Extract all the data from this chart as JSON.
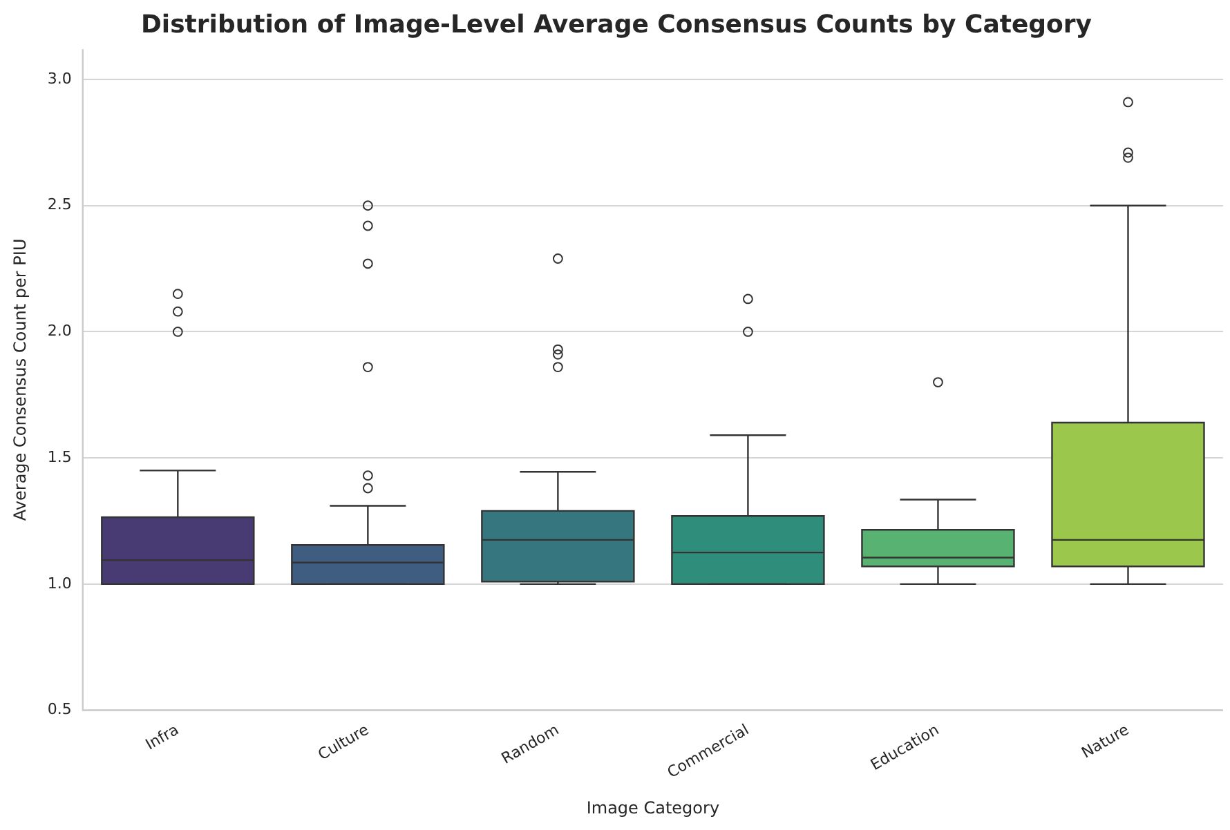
{
  "chart_data": {
    "type": "box",
    "title": "Distribution of Image-Level Average Consensus Counts by Category",
    "xlabel": "Image Category",
    "ylabel": "Average Consensus Count per PIU",
    "categories": [
      "Infra",
      "Culture",
      "Random",
      "Commercial",
      "Education",
      "Nature"
    ],
    "colors": [
      "#483b73",
      "#3f5c81",
      "#35767f",
      "#2e8e7b",
      "#58b372",
      "#9ac74c"
    ],
    "boxes": [
      {
        "low": 1.0,
        "q1": 1.0,
        "median": 1.095,
        "q3": 1.265,
        "high": 1.45,
        "outliers": [
          2.0,
          2.08,
          2.15
        ]
      },
      {
        "low": 1.0,
        "q1": 1.0,
        "median": 1.085,
        "q3": 1.155,
        "high": 1.31,
        "outliers": [
          1.38,
          1.43,
          1.86,
          2.27,
          2.42,
          2.5
        ]
      },
      {
        "low": 1.0,
        "q1": 1.01,
        "median": 1.175,
        "q3": 1.29,
        "high": 1.445,
        "outliers": [
          1.86,
          1.91,
          1.93,
          2.29
        ]
      },
      {
        "low": 1.0,
        "q1": 1.0,
        "median": 1.125,
        "q3": 1.27,
        "high": 1.59,
        "outliers": [
          2.0,
          2.13
        ]
      },
      {
        "low": 1.0,
        "q1": 1.07,
        "median": 1.105,
        "q3": 1.215,
        "high": 1.335,
        "outliers": [
          1.8
        ]
      },
      {
        "low": 1.0,
        "q1": 1.07,
        "median": 1.175,
        "q3": 1.64,
        "high": 2.5,
        "outliers": [
          2.69,
          2.71,
          2.91
        ]
      }
    ],
    "ylim": [
      0.5,
      3.12
    ],
    "yticks": [
      {
        "value": 0.5,
        "label": "0.5"
      },
      {
        "value": 1.0,
        "label": "1.0"
      },
      {
        "value": 1.5,
        "label": "1.5"
      },
      {
        "value": 2.0,
        "label": "2.0"
      },
      {
        "value": 2.5,
        "label": "2.5"
      },
      {
        "value": 3.0,
        "label": "3.0"
      }
    ],
    "grid": "y",
    "legend": false,
    "marker": "circle"
  }
}
